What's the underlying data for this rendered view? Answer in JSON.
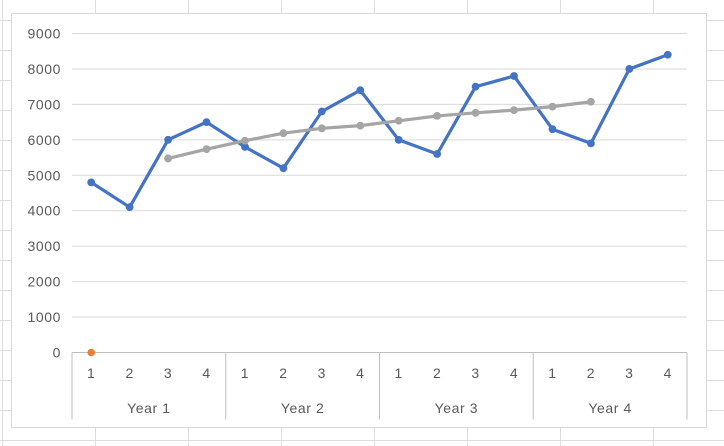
{
  "window": {
    "app_context": "spreadsheet-embedded-chart",
    "chart_title": ""
  },
  "colors": {
    "series_blue": "#4472C4",
    "series_gray": "#A5A5A5",
    "series_orange": "#ED7D31",
    "plot_gridline": "#D9D9D9",
    "axis_line": "#BFBFBF",
    "axis_label_text": "#595959",
    "chart_border": "#D9D9D9",
    "sheet_gridline": "#DBDDDF",
    "chart_fill": "#FFFFFF"
  },
  "chart_data": {
    "type": "line",
    "title": "",
    "legend": "none",
    "grid": true,
    "ylim": [
      0,
      9000
    ],
    "y_tick_interval": 1000,
    "y_tick_labels": [
      "0",
      "1000",
      "2000",
      "3000",
      "4000",
      "5000",
      "6000",
      "7000",
      "8000",
      "9000"
    ],
    "x_axis": {
      "multilevel": true,
      "quarter_labels": [
        "1",
        "2",
        "3",
        "4"
      ],
      "year_labels": [
        "Year 1",
        "Year 2",
        "Year 3",
        "Year 4"
      ],
      "total_categories": 16
    },
    "series": [
      {
        "name": "series-blue-quarterly-values",
        "color": "#4472C4",
        "marker": "circle",
        "start_category": 1,
        "values": [
          4800,
          4100,
          6000,
          6500,
          5800,
          5200,
          6800,
          7400,
          6000,
          5600,
          7500,
          7800,
          6300,
          5900,
          8000,
          8400
        ]
      },
      {
        "name": "series-gray-centered-moving-average",
        "color": "#A5A5A5",
        "marker": "circle",
        "start_category": 3,
        "values": [
          5475,
          5737.5,
          5975,
          6187.5,
          6325,
          6400,
          6537.5,
          6675,
          6762.5,
          6837.5,
          6937.5,
          7075
        ]
      },
      {
        "name": "series-orange-single-zero-point",
        "color": "#ED7D31",
        "marker": "circle",
        "start_category": 1,
        "values": [
          0
        ]
      }
    ]
  }
}
